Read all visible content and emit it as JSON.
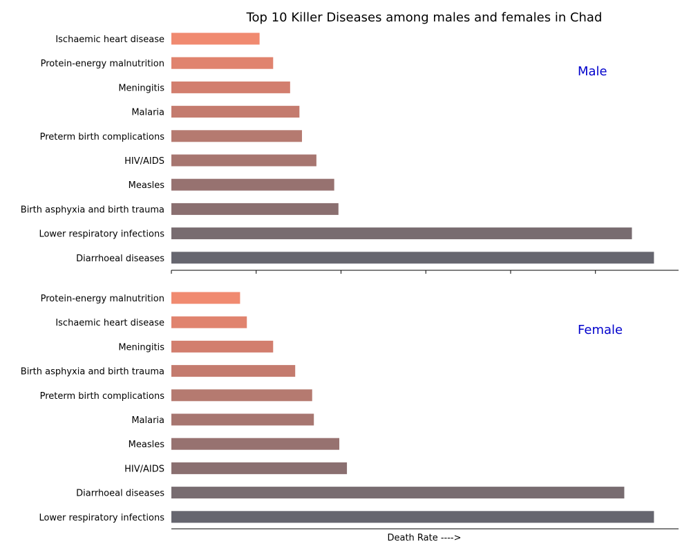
{
  "chart_data": {
    "type": "bar",
    "orientation": "horizontal",
    "title": "Top 10 Killer Diseases among males and females in Chad",
    "xlabel": "Death Rate ---->",
    "panel_label_color": "#0000cc",
    "bar_colors_top_to_bottom": [
      "#f08a70",
      "#e0836e",
      "#d27e6e",
      "#c47b6e",
      "#b57a70",
      "#a77670",
      "#977270",
      "#8a6f70",
      "#786c70",
      "#66666f"
    ],
    "panels": [
      {
        "label": "Male",
        "xlim": [
          0,
          2990
        ],
        "categories": [
          "Ischaemic heart disease",
          "Protein-energy malnutrition",
          "Meningitis",
          "Malaria",
          "Preterm birth complications",
          "HIV/AIDS",
          "Measles",
          "Birth asphyxia and birth trauma",
          "Lower respiratory infections",
          "Diarrhoeal diseases"
        ],
        "values": [
          520,
          600,
          700,
          755,
          770,
          855,
          960,
          985,
          2715,
          2845
        ]
      },
      {
        "label": "Female",
        "xlim": [
          0,
          2990
        ],
        "categories": [
          "Protein-energy malnutrition",
          "Ischaemic heart disease",
          "Meningitis",
          "Birth asphyxia and birth trauma",
          "Preterm birth complications",
          "Malaria",
          "Measles",
          "HIV/AIDS",
          "Diarrhoeal diseases",
          "Lower respiratory infections"
        ],
        "values": [
          405,
          445,
          600,
          730,
          830,
          840,
          990,
          1035,
          2670,
          2845
        ]
      }
    ]
  }
}
